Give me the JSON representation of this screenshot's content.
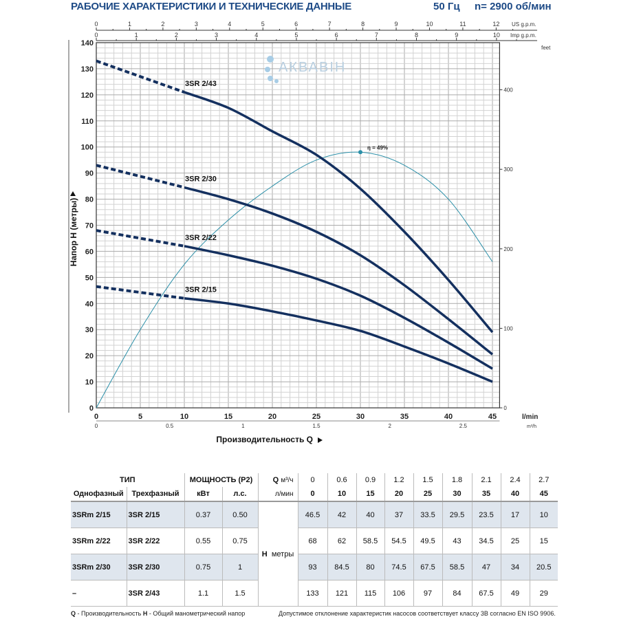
{
  "header": {
    "title": "РАБОЧИЕ ХАРАКТЕРИСТИКИ И ТЕХНИЧЕСКИЕ ДАННЫЕ",
    "frequency": "50 Гц",
    "speed": "n= 2900 об/мин"
  },
  "logo_text": "АКВАВІН",
  "chart_data": {
    "type": "line",
    "xlabel": "Производительность Q",
    "ylabel": "Напор H (метры)",
    "x_unit": "l/min",
    "xlim": [
      0,
      45
    ],
    "ylim": [
      0,
      140
    ],
    "x_ticks": [
      0,
      5,
      10,
      15,
      20,
      25,
      30,
      35,
      40,
      45
    ],
    "y_ticks": [
      0,
      10,
      20,
      30,
      40,
      50,
      60,
      70,
      80,
      90,
      100,
      110,
      120,
      130,
      140
    ],
    "grid": true,
    "secondary_axes": {
      "m3h": {
        "unit": "m³/h",
        "ticks": [
          0,
          0.5,
          1,
          1.5,
          2,
          2.5
        ]
      },
      "us_gpm": {
        "unit": "US g.p.m.",
        "ticks": [
          0,
          1,
          2,
          3,
          4,
          5,
          6,
          7,
          8,
          9,
          10,
          11,
          12
        ]
      },
      "imp_gpm": {
        "unit": "Imp g.p.m.",
        "ticks": [
          0,
          1,
          2,
          3,
          4,
          5,
          6,
          7,
          8,
          9,
          10
        ]
      },
      "feet": {
        "unit": "feet",
        "ticks": [
          0,
          100,
          200,
          300,
          400
        ]
      }
    },
    "x": [
      0,
      10,
      15,
      20,
      25,
      30,
      35,
      40,
      45
    ],
    "dashed_until": 10,
    "series": [
      {
        "name": "3SR 2/43",
        "values": [
          133,
          121,
          115,
          106,
          97,
          84,
          67.5,
          49,
          29
        ]
      },
      {
        "name": "3SR 2/30",
        "values": [
          93,
          84.5,
          80,
          74.5,
          67.5,
          58.5,
          47,
          34,
          20.5
        ]
      },
      {
        "name": "3SR 2/22",
        "values": [
          68,
          62,
          58.5,
          54.5,
          49.5,
          43,
          34.5,
          25,
          15
        ]
      },
      {
        "name": "3SR 2/15",
        "values": [
          46.5,
          42,
          40,
          37,
          33.5,
          29.5,
          23.5,
          17,
          10
        ]
      }
    ],
    "efficiency": {
      "label": "η = 49%",
      "peak_x": 30,
      "peak_percent": 49,
      "x": [
        0,
        5,
        10,
        15,
        20,
        25,
        30,
        35,
        40,
        45
      ],
      "percent": [
        0,
        15,
        27.5,
        36,
        42.5,
        47.5,
        49,
        46.5,
        40,
        28
      ]
    },
    "colors": {
      "curve": "#14305f",
      "efficiency": "#2a8fa8",
      "grid": "#c8c8c8"
    }
  },
  "table": {
    "type_header": "ТИП",
    "power_header": "МОЩНОСТЬ (P2)",
    "q_label": "Q",
    "q_unit_m3h": "м³/ч",
    "q_unit_lmin": "л/мин",
    "single_phase": "Однофазный",
    "three_phase": "Трехфазный",
    "kw": "кВт",
    "hp": "л.с.",
    "q_m3h": [
      "0",
      "0.6",
      "0.9",
      "1.2",
      "1.5",
      "1.8",
      "2.1",
      "2.4",
      "2.7"
    ],
    "q_lmin": [
      "0",
      "10",
      "15",
      "20",
      "25",
      "30",
      "35",
      "40",
      "45"
    ],
    "h_label": "H",
    "h_unit": "метры",
    "rows": [
      {
        "single": "3SRm 2/15",
        "three": "3SR 2/15",
        "kw": "0.37",
        "hp": "0.50",
        "h": [
          "46.5",
          "42",
          "40",
          "37",
          "33.5",
          "29.5",
          "23.5",
          "17",
          "10"
        ]
      },
      {
        "single": "3SRm 2/22",
        "three": "3SR 2/22",
        "kw": "0.55",
        "hp": "0.75",
        "h": [
          "68",
          "62",
          "58.5",
          "54.5",
          "49.5",
          "43",
          "34.5",
          "25",
          "15"
        ]
      },
      {
        "single": "3SRm 2/30",
        "three": "3SR 2/30",
        "kw": "0.75",
        "hp": "1",
        "h": [
          "93",
          "84.5",
          "80",
          "74.5",
          "67.5",
          "58.5",
          "47",
          "34",
          "20.5"
        ]
      },
      {
        "single": "–",
        "three": "3SR 2/43",
        "kw": "1.1",
        "hp": "1.5",
        "h": [
          "133",
          "121",
          "115",
          "106",
          "97",
          "84",
          "67.5",
          "49",
          "29"
        ]
      }
    ]
  },
  "footer": {
    "left_q": "Q",
    "left_q_text": " - Производительность  ",
    "left_h": "H",
    "left_h_text": " - Общий манометрический напор",
    "right": "Допустимое отклонение характеристик насосов соответствует классу 3B согласно EN ISO 9906."
  }
}
